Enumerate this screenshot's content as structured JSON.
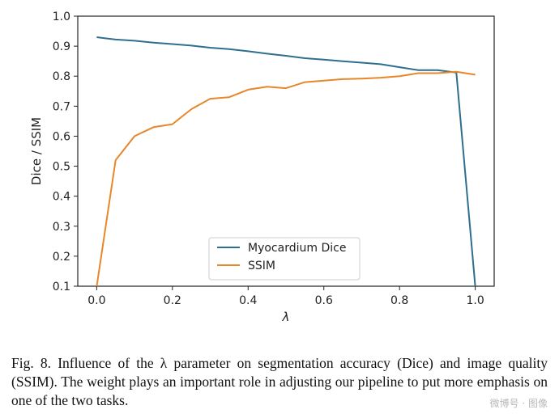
{
  "chart_data": {
    "type": "line",
    "title": "",
    "xlabel": "λ",
    "ylabel": "Dice / SSIM",
    "xlim": [
      -0.05,
      1.05
    ],
    "ylim": [
      0.1,
      1.0
    ],
    "xticks": [
      "0.0",
      "0.2",
      "0.4",
      "0.6",
      "0.8",
      "1.0"
    ],
    "yticks": [
      "0.1",
      "0.2",
      "0.3",
      "0.4",
      "0.5",
      "0.6",
      "0.7",
      "0.8",
      "0.9",
      "1.0"
    ],
    "grid": false,
    "legend_position": "lower-center",
    "series": [
      {
        "name": "Myocardium Dice",
        "color": "#2e6f8e",
        "x": [
          0.0,
          0.05,
          0.1,
          0.15,
          0.2,
          0.25,
          0.3,
          0.35,
          0.4,
          0.45,
          0.5,
          0.55,
          0.6,
          0.65,
          0.7,
          0.75,
          0.8,
          0.85,
          0.9,
          0.95,
          1.0
        ],
        "y": [
          0.93,
          0.922,
          0.918,
          0.912,
          0.907,
          0.902,
          0.895,
          0.89,
          0.883,
          0.875,
          0.868,
          0.86,
          0.855,
          0.85,
          0.845,
          0.84,
          0.83,
          0.82,
          0.82,
          0.812,
          0.1
        ]
      },
      {
        "name": "SSIM",
        "color": "#e8862a",
        "x": [
          0.0,
          0.05,
          0.1,
          0.15,
          0.2,
          0.25,
          0.3,
          0.35,
          0.4,
          0.45,
          0.5,
          0.55,
          0.6,
          0.65,
          0.7,
          0.75,
          0.8,
          0.85,
          0.9,
          0.95,
          1.0
        ],
        "y": [
          0.1,
          0.52,
          0.6,
          0.63,
          0.64,
          0.69,
          0.725,
          0.73,
          0.755,
          0.765,
          0.76,
          0.78,
          0.785,
          0.79,
          0.792,
          0.795,
          0.8,
          0.81,
          0.81,
          0.815,
          0.805
        ]
      }
    ]
  },
  "caption": {
    "text": "Fig. 8.   Influence of the λ parameter on segmentation accuracy (Dice) and image quality (SSIM). The weight plays an important role in adjusting our pipeline to put more emphasis on one of the two tasks."
  },
  "watermark": "微博号 · 图像"
}
